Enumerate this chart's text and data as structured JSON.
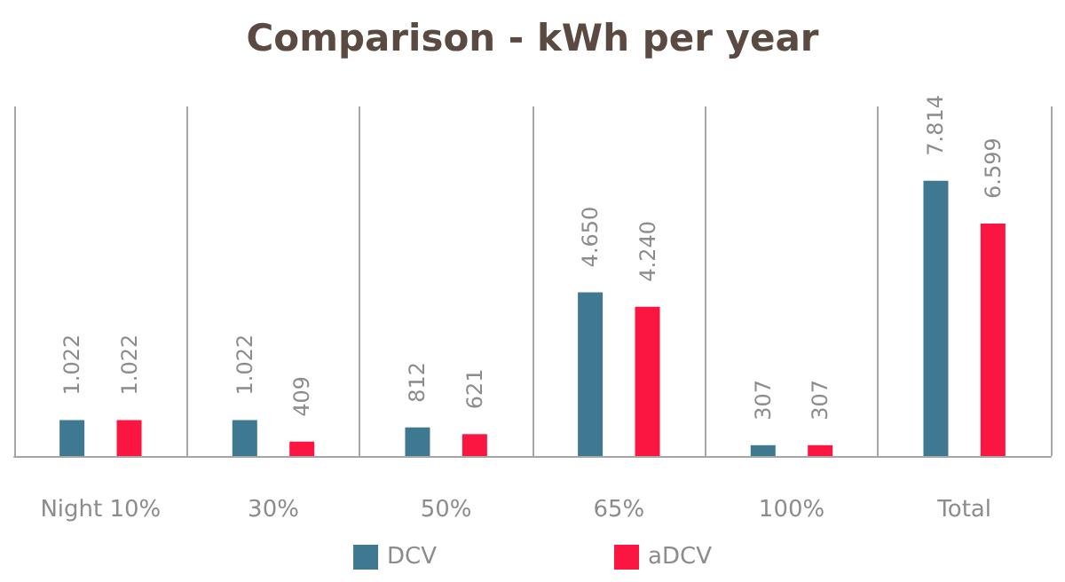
{
  "chart_data": {
    "type": "bar",
    "title": "Comparison - kWh per year",
    "categories": [
      "Night 10%",
      "30%",
      "50%",
      "65%",
      "100%",
      "Total"
    ],
    "series": [
      {
        "name": "DCV",
        "color": "#3f7891",
        "values": [
          1022,
          1022,
          812,
          4650,
          307,
          7814
        ],
        "value_labels": [
          "1.022",
          "1.022",
          "812",
          "4.650",
          "307",
          "7.814"
        ]
      },
      {
        "name": "aDCV",
        "color": "#fb1541",
        "values": [
          1022,
          409,
          621,
          4240,
          307,
          6599
        ],
        "value_labels": [
          "1.022",
          "409",
          "621",
          "4.240",
          "307",
          "6.599"
        ]
      }
    ],
    "grid": "x",
    "legend": "bottom"
  }
}
